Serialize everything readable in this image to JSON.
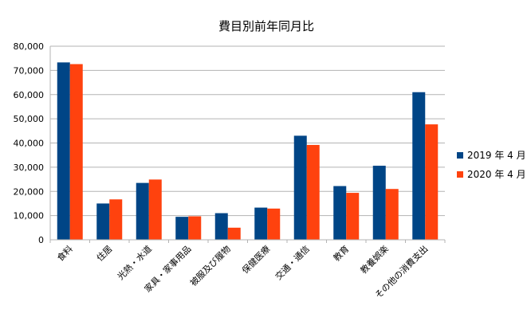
{
  "chart_data": {
    "type": "bar",
    "title": "費目別前年同月比",
    "categories": [
      "食料",
      "住居",
      "光熱・水道",
      "家具・家事用品",
      "被服及び履物",
      "保健医療",
      "交通・通信",
      "教育",
      "教養娯楽",
      "その他の消費支出"
    ],
    "series": [
      {
        "name": "2019 年 4 月",
        "color": "#004586",
        "values": [
          73300,
          15000,
          23500,
          9500,
          11000,
          13300,
          43000,
          22200,
          30600,
          61000
        ]
      },
      {
        "name": "2020 年 4 月",
        "color": "#ff420e",
        "values": [
          72600,
          16700,
          24900,
          9700,
          5000,
          12900,
          39200,
          19400,
          21000,
          47700
        ]
      }
    ],
    "yticks": [
      "0",
      "10,000",
      "20,000",
      "30,000",
      "40,000",
      "50,000",
      "60,000",
      "70,000",
      "80,000"
    ],
    "ylim": [
      0,
      80000
    ],
    "grid": true,
    "legend": "right"
  }
}
